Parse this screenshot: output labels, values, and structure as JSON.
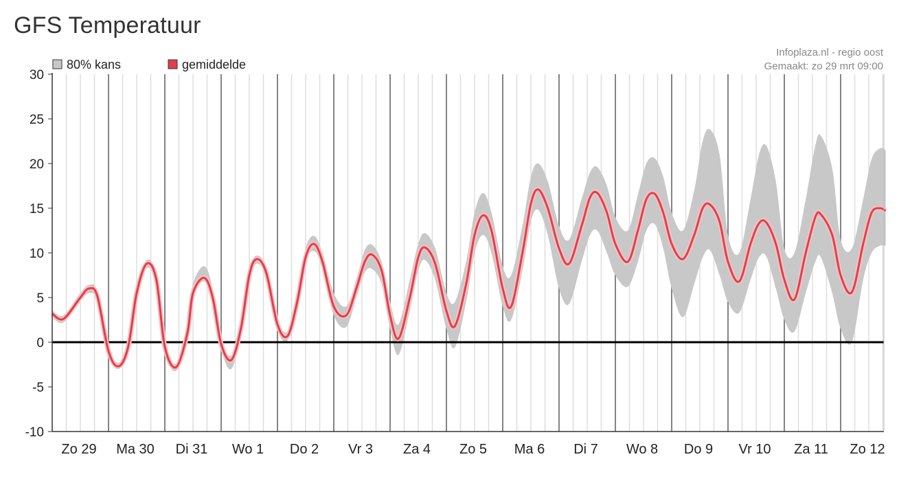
{
  "page": {
    "title": "GFS Temperatuur"
  },
  "legend": {
    "band_label": "80% kans",
    "mean_label": "gemiddelde"
  },
  "credit": {
    "source": "Infoplaza.nl - regio oost",
    "made": "Gemaakt: zo 29 mrt 09:00"
  },
  "colors": {
    "band": "#c8c8c8",
    "mean": "#e0404a",
    "mean_halo": "#f3c2c5",
    "zero_line": "#000000",
    "day_line": "#777777",
    "grid": "#dddddd"
  },
  "chart_data": {
    "type": "area",
    "title": "GFS Temperatuur",
    "ylim": [
      -10,
      30
    ],
    "yticks": [
      30,
      25,
      20,
      15,
      10,
      5,
      0,
      -5,
      -10
    ],
    "day_labels": [
      "Zo 29",
      "Ma 30",
      "Di 31",
      "Wo 1",
      "Do 2",
      "Vr 3",
      "Za 4",
      "Zo 5",
      "Ma 6",
      "Di 7",
      "Wo 8",
      "Do 9",
      "Vr 10",
      "Za 11",
      "Zo 12"
    ],
    "x_unit": "days from start of Zo 29",
    "series": [
      {
        "name": "gemiddelde",
        "points": [
          [
            0,
            3.2
          ],
          [
            0.2,
            2.6
          ],
          [
            0.5,
            5.0
          ],
          [
            0.65,
            6.0
          ],
          [
            0.8,
            5.2
          ],
          [
            1.0,
            -1.0
          ],
          [
            1.18,
            -2.7
          ],
          [
            1.35,
            -0.5
          ],
          [
            1.5,
            5.5
          ],
          [
            1.68,
            8.8
          ],
          [
            1.85,
            7.0
          ],
          [
            2.0,
            -0.5
          ],
          [
            2.2,
            -2.8
          ],
          [
            2.4,
            1.0
          ],
          [
            2.5,
            5.5
          ],
          [
            2.7,
            7.2
          ],
          [
            2.85,
            5.0
          ],
          [
            3.0,
            -0.2
          ],
          [
            3.18,
            -2.0
          ],
          [
            3.35,
            1.5
          ],
          [
            3.5,
            7.5
          ],
          [
            3.63,
            9.3
          ],
          [
            3.8,
            7.8
          ],
          [
            4.0,
            2.0
          ],
          [
            4.18,
            0.7
          ],
          [
            4.35,
            4.5
          ],
          [
            4.5,
            9.5
          ],
          [
            4.65,
            11.0
          ],
          [
            4.8,
            9.0
          ],
          [
            5.0,
            4.0
          ],
          [
            5.22,
            3.0
          ],
          [
            5.4,
            6.0
          ],
          [
            5.55,
            9.0
          ],
          [
            5.68,
            9.8
          ],
          [
            5.85,
            8.0
          ],
          [
            6.0,
            3.0
          ],
          [
            6.15,
            0.4
          ],
          [
            6.35,
            5.0
          ],
          [
            6.5,
            9.5
          ],
          [
            6.62,
            10.6
          ],
          [
            6.8,
            8.8
          ],
          [
            7.0,
            3.5
          ],
          [
            7.15,
            1.8
          ],
          [
            7.35,
            6.5
          ],
          [
            7.5,
            12.0
          ],
          [
            7.65,
            14.2
          ],
          [
            7.8,
            12.5
          ],
          [
            8.0,
            6.0
          ],
          [
            8.15,
            4.0
          ],
          [
            8.35,
            10.0
          ],
          [
            8.5,
            15.5
          ],
          [
            8.63,
            17.1
          ],
          [
            8.8,
            15.0
          ],
          [
            9.0,
            10.5
          ],
          [
            9.18,
            8.8
          ],
          [
            9.4,
            13.0
          ],
          [
            9.55,
            16.2
          ],
          [
            9.68,
            16.7
          ],
          [
            9.85,
            14.5
          ],
          [
            10.0,
            11.0
          ],
          [
            10.22,
            9.0
          ],
          [
            10.4,
            12.5
          ],
          [
            10.55,
            16.0
          ],
          [
            10.7,
            16.6
          ],
          [
            10.85,
            14.5
          ],
          [
            11.0,
            11.0
          ],
          [
            11.2,
            9.3
          ],
          [
            11.4,
            12.0
          ],
          [
            11.55,
            15.0
          ],
          [
            11.68,
            15.4
          ],
          [
            11.85,
            13.5
          ],
          [
            12.0,
            9.0
          ],
          [
            12.2,
            6.8
          ],
          [
            12.4,
            11.0
          ],
          [
            12.55,
            13.3
          ],
          [
            12.68,
            13.4
          ],
          [
            12.85,
            11.0
          ],
          [
            13.0,
            7.0
          ],
          [
            13.18,
            4.8
          ],
          [
            13.38,
            10.0
          ],
          [
            13.55,
            14.0
          ],
          [
            13.65,
            14.3
          ],
          [
            13.85,
            12.0
          ],
          [
            14.0,
            7.5
          ],
          [
            14.2,
            5.6
          ],
          [
            14.4,
            11.0
          ],
          [
            14.55,
            14.5
          ],
          [
            14.7,
            15.0
          ],
          [
            14.8,
            14.7
          ]
        ]
      },
      {
        "name": "80% kans",
        "upper": [
          [
            0,
            3.6
          ],
          [
            0.2,
            3.0
          ],
          [
            0.5,
            5.5
          ],
          [
            0.65,
            6.4
          ],
          [
            0.8,
            5.7
          ],
          [
            1.0,
            -0.5
          ],
          [
            1.18,
            -2.3
          ],
          [
            1.35,
            0.0
          ],
          [
            1.5,
            6.0
          ],
          [
            1.68,
            9.2
          ],
          [
            1.85,
            7.5
          ],
          [
            2.0,
            0.0
          ],
          [
            2.2,
            -2.4
          ],
          [
            2.4,
            1.7
          ],
          [
            2.5,
            6.5
          ],
          [
            2.7,
            8.5
          ],
          [
            2.85,
            6.0
          ],
          [
            3.0,
            0.3
          ],
          [
            3.18,
            -1.5
          ],
          [
            3.35,
            2.0
          ],
          [
            3.5,
            8.0
          ],
          [
            3.63,
            9.7
          ],
          [
            3.8,
            8.3
          ],
          [
            4.0,
            2.6
          ],
          [
            4.18,
            1.2
          ],
          [
            4.35,
            5.2
          ],
          [
            4.5,
            10.5
          ],
          [
            4.65,
            11.9
          ],
          [
            4.8,
            10.0
          ],
          [
            5.0,
            5.5
          ],
          [
            5.22,
            4.0
          ],
          [
            5.4,
            7.0
          ],
          [
            5.55,
            10.3
          ],
          [
            5.68,
            10.9
          ],
          [
            5.85,
            9.0
          ],
          [
            6.0,
            4.5
          ],
          [
            6.15,
            2.0
          ],
          [
            6.35,
            7.0
          ],
          [
            6.5,
            11.0
          ],
          [
            6.62,
            12.2
          ],
          [
            6.8,
            10.5
          ],
          [
            7.0,
            5.5
          ],
          [
            7.15,
            4.5
          ],
          [
            7.35,
            9.0
          ],
          [
            7.5,
            14.5
          ],
          [
            7.65,
            16.7
          ],
          [
            7.8,
            14.5
          ],
          [
            8.0,
            8.5
          ],
          [
            8.15,
            7.5
          ],
          [
            8.35,
            13.0
          ],
          [
            8.5,
            18.5
          ],
          [
            8.63,
            20.0
          ],
          [
            8.8,
            18.0
          ],
          [
            9.0,
            13.0
          ],
          [
            9.18,
            11.5
          ],
          [
            9.4,
            16.0
          ],
          [
            9.55,
            19.0
          ],
          [
            9.68,
            19.6
          ],
          [
            9.85,
            17.5
          ],
          [
            10.0,
            14.0
          ],
          [
            10.22,
            12.5
          ],
          [
            10.4,
            16.5
          ],
          [
            10.55,
            20.0
          ],
          [
            10.7,
            20.6
          ],
          [
            10.85,
            18.5
          ],
          [
            11.0,
            14.5
          ],
          [
            11.2,
            12.5
          ],
          [
            11.4,
            17.0
          ],
          [
            11.55,
            22.5
          ],
          [
            11.68,
            23.8
          ],
          [
            11.85,
            21.0
          ],
          [
            12.0,
            12.0
          ],
          [
            12.2,
            10.0
          ],
          [
            12.4,
            16.0
          ],
          [
            12.55,
            21.0
          ],
          [
            12.68,
            22.0
          ],
          [
            12.85,
            18.0
          ],
          [
            13.0,
            10.5
          ],
          [
            13.18,
            10.0
          ],
          [
            13.38,
            16.0
          ],
          [
            13.55,
            22.0
          ],
          [
            13.65,
            23.1
          ],
          [
            13.85,
            19.5
          ],
          [
            14.0,
            11.5
          ],
          [
            14.2,
            10.5
          ],
          [
            14.4,
            16.0
          ],
          [
            14.55,
            20.5
          ],
          [
            14.7,
            21.7
          ],
          [
            14.8,
            21.5
          ]
        ],
        "lower": [
          [
            0,
            2.8
          ],
          [
            0.2,
            2.2
          ],
          [
            0.5,
            4.6
          ],
          [
            0.65,
            5.5
          ],
          [
            0.8,
            4.6
          ],
          [
            1.0,
            -1.5
          ],
          [
            1.18,
            -3.0
          ],
          [
            1.35,
            -1.0
          ],
          [
            1.5,
            5.0
          ],
          [
            1.68,
            8.3
          ],
          [
            1.85,
            6.5
          ],
          [
            2.0,
            -1.0
          ],
          [
            2.2,
            -3.2
          ],
          [
            2.4,
            0.5
          ],
          [
            2.5,
            5.0
          ],
          [
            2.7,
            6.8
          ],
          [
            2.85,
            4.5
          ],
          [
            3.0,
            -0.8
          ],
          [
            3.18,
            -3.0
          ],
          [
            3.35,
            1.0
          ],
          [
            3.5,
            7.0
          ],
          [
            3.63,
            8.8
          ],
          [
            3.8,
            7.3
          ],
          [
            4.0,
            1.4
          ],
          [
            4.18,
            0.2
          ],
          [
            4.35,
            4.0
          ],
          [
            4.5,
            9.0
          ],
          [
            4.65,
            10.2
          ],
          [
            4.8,
            8.3
          ],
          [
            5.0,
            3.0
          ],
          [
            5.22,
            1.7
          ],
          [
            5.4,
            5.0
          ],
          [
            5.55,
            7.8
          ],
          [
            5.68,
            8.2
          ],
          [
            5.85,
            6.5
          ],
          [
            6.0,
            1.5
          ],
          [
            6.15,
            -1.4
          ],
          [
            6.35,
            3.5
          ],
          [
            6.5,
            8.0
          ],
          [
            6.62,
            9.2
          ],
          [
            6.8,
            7.0
          ],
          [
            7.0,
            1.5
          ],
          [
            7.15,
            -0.6
          ],
          [
            7.35,
            4.5
          ],
          [
            7.5,
            10.0
          ],
          [
            7.65,
            12.0
          ],
          [
            7.8,
            10.0
          ],
          [
            8.0,
            4.0
          ],
          [
            8.15,
            2.5
          ],
          [
            8.35,
            8.0
          ],
          [
            8.5,
            13.5
          ],
          [
            8.63,
            14.8
          ],
          [
            8.8,
            12.0
          ],
          [
            9.0,
            6.0
          ],
          [
            9.18,
            4.3
          ],
          [
            9.4,
            9.0
          ],
          [
            9.55,
            12.0
          ],
          [
            9.68,
            12.5
          ],
          [
            9.85,
            10.0
          ],
          [
            10.0,
            7.5
          ],
          [
            10.22,
            6.2
          ],
          [
            10.4,
            9.0
          ],
          [
            10.55,
            12.5
          ],
          [
            10.7,
            13.2
          ],
          [
            10.85,
            10.5
          ],
          [
            11.0,
            6.0
          ],
          [
            11.2,
            2.8
          ],
          [
            11.4,
            6.5
          ],
          [
            11.55,
            9.5
          ],
          [
            11.68,
            10.3
          ],
          [
            11.85,
            7.5
          ],
          [
            12.0,
            4.5
          ],
          [
            12.2,
            3.3
          ],
          [
            12.4,
            7.0
          ],
          [
            12.55,
            9.5
          ],
          [
            12.68,
            9.6
          ],
          [
            12.85,
            6.0
          ],
          [
            13.0,
            2.5
          ],
          [
            13.18,
            1.2
          ],
          [
            13.38,
            5.5
          ],
          [
            13.55,
            9.0
          ],
          [
            13.65,
            9.5
          ],
          [
            13.85,
            5.5
          ],
          [
            14.0,
            1.5
          ],
          [
            14.2,
            0.0
          ],
          [
            14.4,
            7.0
          ],
          [
            14.55,
            10.0
          ],
          [
            14.7,
            10.8
          ],
          [
            14.8,
            10.8
          ]
        ]
      }
    ],
    "grid": true,
    "legend_position": "top-left"
  }
}
